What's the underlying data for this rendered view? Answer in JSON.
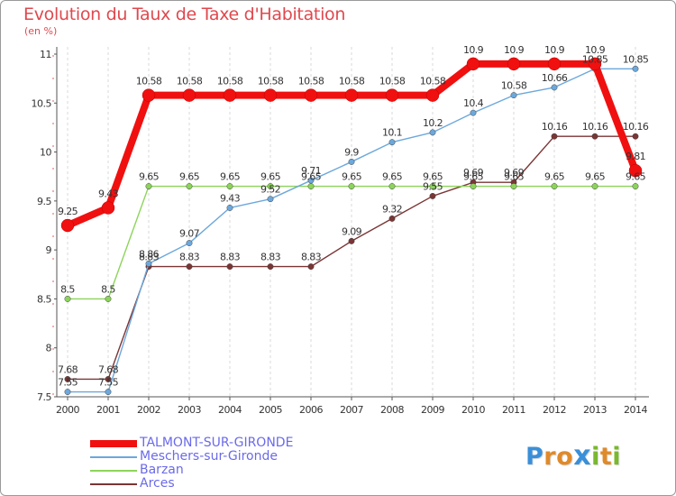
{
  "title": "Evolution du Taux de Taxe d'Habitation",
  "subtitle": "(en %)",
  "logo": {
    "letters": [
      "P",
      "r",
      "o",
      "x",
      "i",
      "t",
      "i"
    ],
    "colors": [
      "#3a8fd9",
      "#e08a2a",
      "#e08a2a",
      "#3a8fd9",
      "#7ab82e",
      "#e08a2a",
      "#7ab82e"
    ]
  },
  "chart_data": {
    "type": "line",
    "x": [
      2000,
      2001,
      2002,
      2003,
      2004,
      2005,
      2006,
      2007,
      2008,
      2009,
      2010,
      2011,
      2012,
      2013,
      2014
    ],
    "x_tick_labels": [
      "2000",
      "2001",
      "2002",
      "2003",
      "2004",
      "2005",
      "2006",
      "2007",
      "2008",
      "2009",
      "2010",
      "2011",
      "2012",
      "2013",
      "2014"
    ],
    "ylim": [
      7.5,
      11
    ],
    "y_ticks": [
      7.5,
      8,
      8.5,
      9,
      9.5,
      10,
      10.5,
      11
    ],
    "y_tick_labels": [
      "7.5",
      "8",
      "8.5",
      "9",
      "9.5",
      "10",
      "10.5",
      "11"
    ],
    "grid": "vertical dashed",
    "legend_position": "bottom-left",
    "series": [
      {
        "name": "TALMONT-SUR-GIRONDE",
        "color": "#f01010",
        "values": [
          9.25,
          9.43,
          10.58,
          10.58,
          10.58,
          10.58,
          10.58,
          10.58,
          10.58,
          10.58,
          10.9,
          10.9,
          10.9,
          10.9,
          9.81
        ],
        "labels": [
          "9.25",
          "9.43",
          "10.58",
          "10.58",
          "10.58",
          "10.58",
          "10.58",
          "10.58",
          "10.58",
          "10.58",
          "10.9",
          "10.9",
          "10.9",
          "10.9",
          "9.81"
        ]
      },
      {
        "name": "Meschers-sur-Gironde",
        "color": "#6ca8dc",
        "values": [
          7.55,
          7.55,
          8.86,
          9.07,
          9.43,
          9.52,
          9.71,
          9.9,
          10.1,
          10.2,
          10.4,
          10.58,
          10.66,
          10.85,
          10.85
        ],
        "labels": [
          "7.55",
          "7.55",
          "8.86",
          "9.07",
          "9.43",
          "9.52",
          "9.71",
          "9.9",
          "10.1",
          "10.2",
          "10.4",
          "10.58",
          "10.66",
          "10.85",
          "10.85"
        ]
      },
      {
        "name": "Barzan",
        "color": "#8cd45a",
        "values": [
          8.5,
          8.5,
          9.65,
          9.65,
          9.65,
          9.65,
          9.65,
          9.65,
          9.65,
          9.65,
          9.65,
          9.65,
          9.65,
          9.65,
          9.65
        ],
        "labels": [
          "8.5",
          "8.5",
          "9.65",
          "9.65",
          "9.65",
          "9.65",
          "9.65",
          "9.65",
          "9.65",
          "9.65",
          "9.65",
          "9.65",
          "9.65",
          "9.65",
          "9.65"
        ]
      },
      {
        "name": "Arces",
        "color": "#7a3535",
        "values": [
          7.68,
          7.68,
          8.83,
          8.83,
          8.83,
          8.83,
          8.83,
          9.09,
          9.32,
          9.55,
          9.69,
          9.69,
          10.16,
          10.16,
          10.16
        ],
        "labels": [
          "7.68",
          "7.68",
          "8.83",
          "8.83",
          "8.83",
          "8.83",
          "8.83",
          "9.09",
          "9.32",
          "9.55",
          "9.69",
          "9.69",
          "10.16",
          "10.16",
          "10.16"
        ]
      }
    ]
  }
}
